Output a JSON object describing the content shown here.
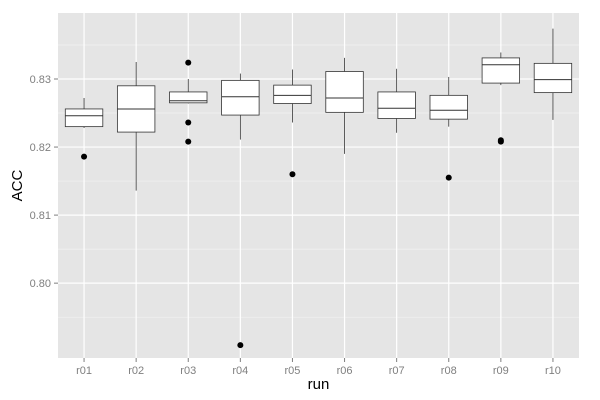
{
  "chart_data": {
    "type": "boxplot",
    "xlabel": "run",
    "ylabel": "ACC",
    "categories": [
      "r01",
      "r02",
      "r03",
      "r04",
      "r05",
      "r06",
      "r07",
      "r08",
      "r09",
      "r10"
    ],
    "ylim": [
      0.789,
      0.8397
    ],
    "yticks": [
      0.8,
      0.81,
      0.82,
      0.83
    ],
    "ytick_labels": [
      "0.80",
      "0.81",
      "0.82",
      "0.83"
    ],
    "grid": true,
    "boxes": [
      {
        "min": 0.8228,
        "q1": 0.823,
        "median": 0.8246,
        "q3": 0.8256,
        "max": 0.8272,
        "outliers": [
          0.8186
        ]
      },
      {
        "min": 0.8136,
        "q1": 0.8222,
        "median": 0.8256,
        "q3": 0.829,
        "max": 0.8325,
        "outliers": []
      },
      {
        "min": 0.8264,
        "q1": 0.8265,
        "median": 0.8268,
        "q3": 0.8281,
        "max": 0.83,
        "outliers": [
          0.8324,
          0.8236,
          0.8208
        ]
      },
      {
        "min": 0.8211,
        "q1": 0.8247,
        "median": 0.8274,
        "q3": 0.8298,
        "max": 0.8308,
        "outliers": [
          0.7909
        ]
      },
      {
        "min": 0.8236,
        "q1": 0.8264,
        "median": 0.8276,
        "q3": 0.8291,
        "max": 0.8314,
        "outliers": [
          0.816
        ]
      },
      {
        "min": 0.819,
        "q1": 0.8251,
        "median": 0.8272,
        "q3": 0.8311,
        "max": 0.8331,
        "outliers": []
      },
      {
        "min": 0.8221,
        "q1": 0.8242,
        "median": 0.8257,
        "q3": 0.8281,
        "max": 0.8315,
        "outliers": []
      },
      {
        "min": 0.823,
        "q1": 0.8241,
        "median": 0.8254,
        "q3": 0.8276,
        "max": 0.8303,
        "outliers": [
          0.8155
        ]
      },
      {
        "min": 0.8291,
        "q1": 0.8294,
        "median": 0.8321,
        "q3": 0.8331,
        "max": 0.8339,
        "outliers": [
          0.8208,
          0.821
        ]
      },
      {
        "min": 0.824,
        "q1": 0.828,
        "median": 0.8299,
        "q3": 0.8323,
        "max": 0.8374,
        "outliers": []
      }
    ],
    "colors": {
      "panel_background": "#e5e5e5",
      "grid_major": "#ffffff",
      "grid_minor": "#f2f2f2",
      "box_fill": "#ffffff",
      "box_stroke": "#333333",
      "outlier": "#000000",
      "tick_label": "#7f7f7f",
      "axis_title": "#000000"
    }
  }
}
